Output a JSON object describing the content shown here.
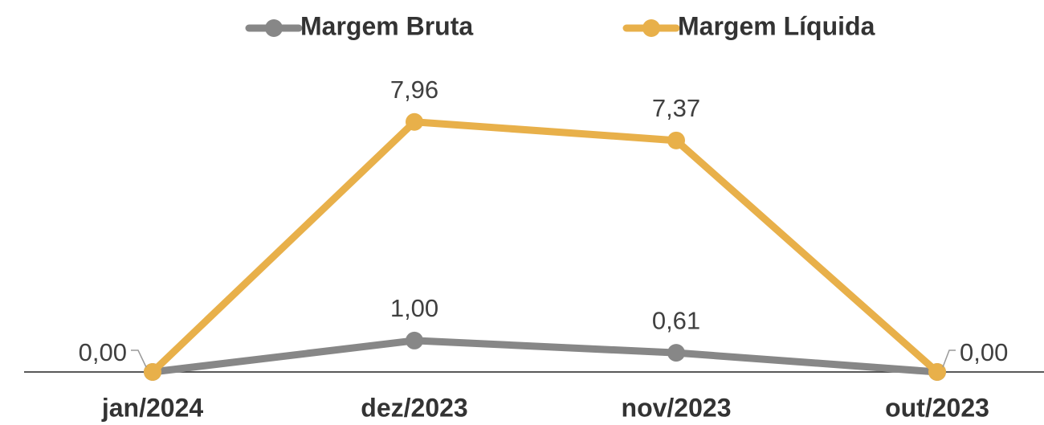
{
  "chart_data": {
    "type": "line",
    "categories": [
      "jan/2024",
      "dez/2023",
      "nov/2023",
      "out/2023"
    ],
    "series": [
      {
        "name": "Margem Bruta",
        "color": "#878787",
        "values": [
          0,
          1.0,
          0.61,
          0
        ],
        "value_labels": [
          null,
          "1,00",
          "0,61",
          null
        ]
      },
      {
        "name": "Margem Líquida",
        "color": "#E8B04A",
        "values": [
          0,
          7.96,
          7.37,
          0
        ],
        "value_labels": [
          "0,00",
          "7,96",
          "7,37",
          "0,00"
        ]
      }
    ],
    "ylim": [
      0,
      10
    ]
  }
}
